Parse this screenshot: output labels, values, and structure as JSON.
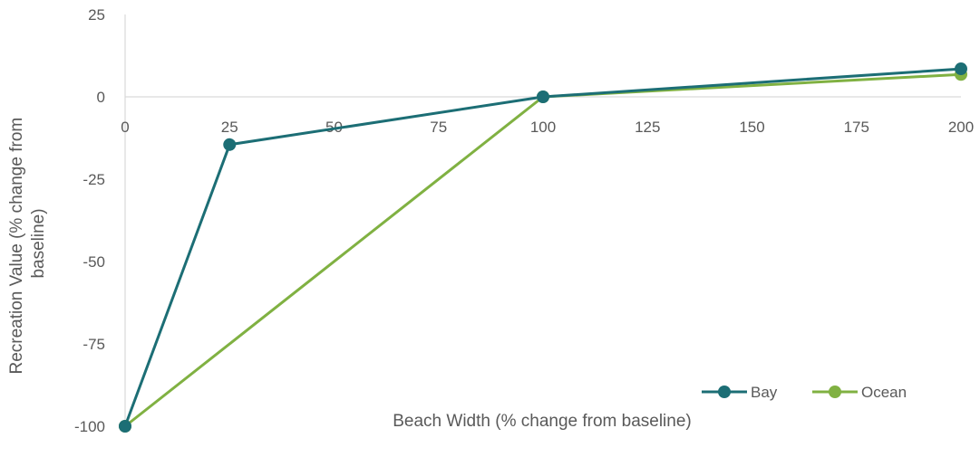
{
  "chart_data": {
    "type": "scatter",
    "title": "",
    "xlabel": "Beach Width (% change from baseline)",
    "ylabel_lines": [
      "Recreation Value (% change from",
      "baseline)"
    ],
    "xlim": [
      0,
      200
    ],
    "ylim": [
      -100,
      25
    ],
    "x_ticks": [
      "0",
      "25",
      "50",
      "75",
      "100",
      "125",
      "150",
      "175",
      "200"
    ],
    "y_ticks": [
      "25",
      "0",
      "-25",
      "-50",
      "-75",
      "-100"
    ],
    "grid": false,
    "legend_position": "bottom-right",
    "series": [
      {
        "name": "Bay",
        "color": "#1c6e75",
        "x": [
          0,
          25,
          100,
          200
        ],
        "y": [
          -100,
          -14.5,
          0,
          8.5
        ]
      },
      {
        "name": "Ocean",
        "color": "#80b142",
        "x": [
          0,
          100,
          200
        ],
        "y": [
          -100,
          0,
          6.8
        ]
      }
    ]
  }
}
